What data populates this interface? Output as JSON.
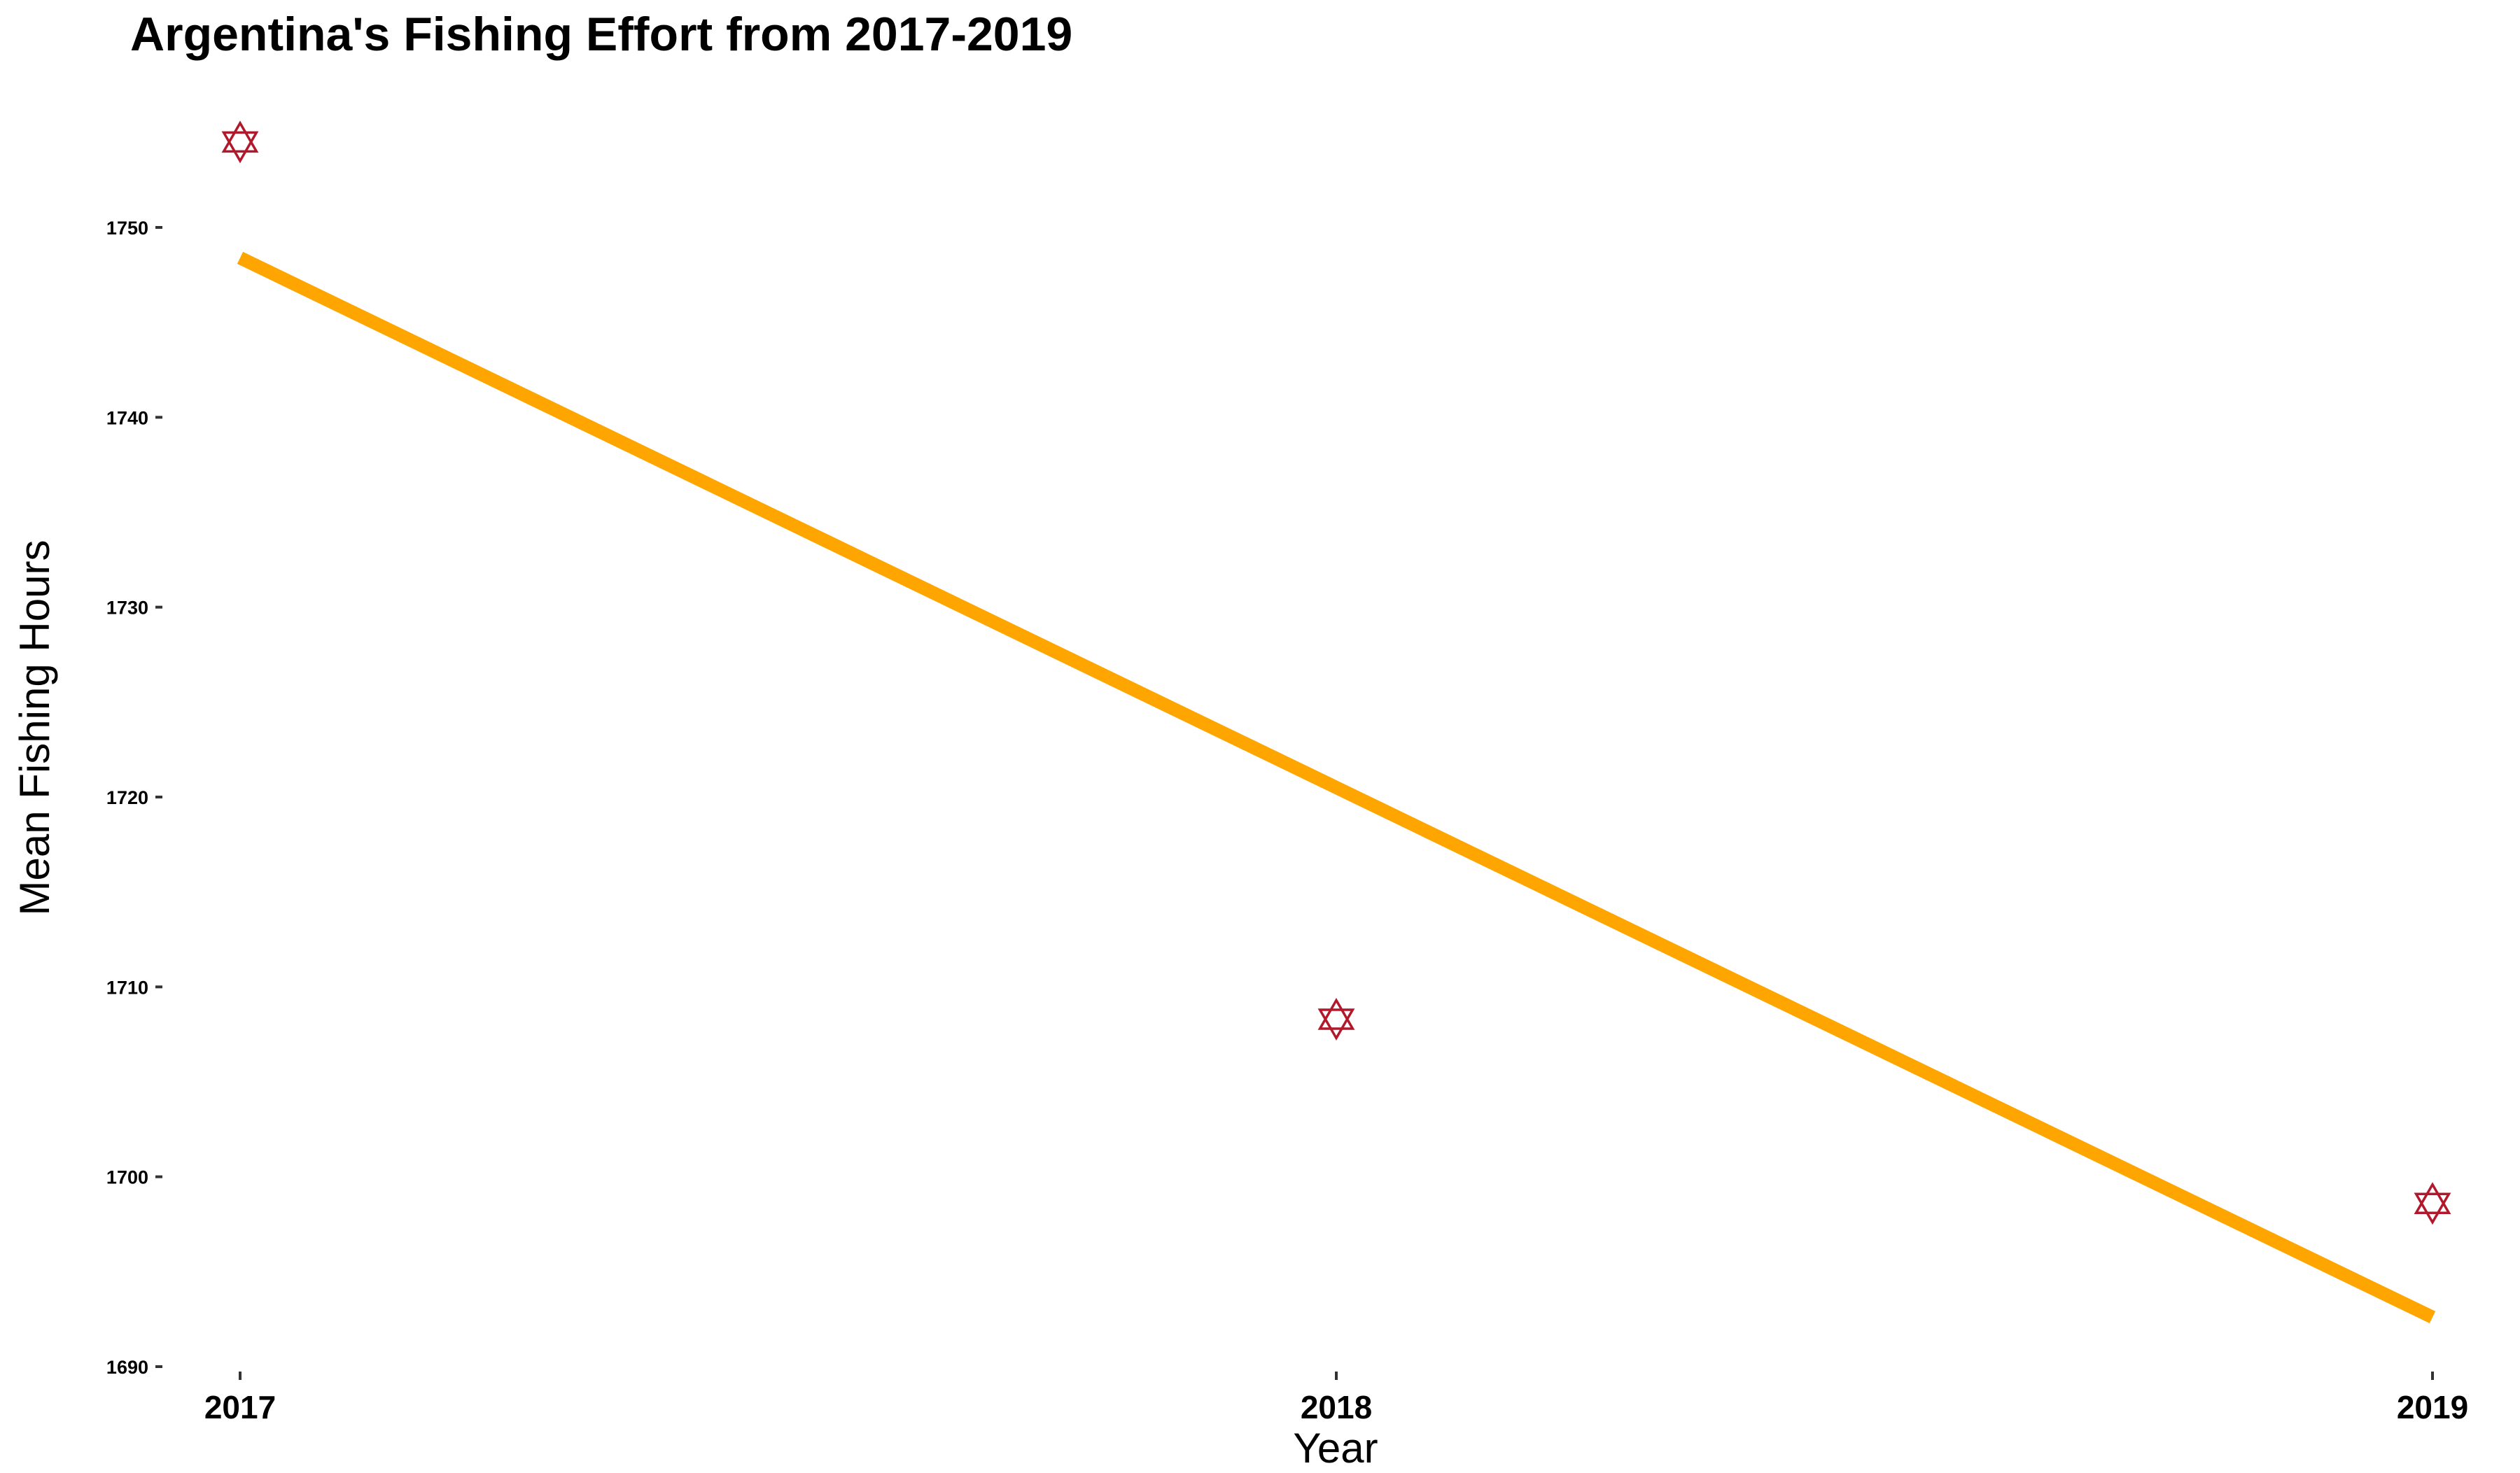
{
  "chart_data": {
    "type": "scatter",
    "title": "Argentina's Fishing Effort from 2017-2019",
    "xlabel": "Year",
    "ylabel": "Mean Fishing Hours",
    "x": [
      2017,
      2018,
      2019
    ],
    "x_tick_labels": [
      "2017",
      "2018",
      "2019"
    ],
    "y_ticks": [
      1690,
      1700,
      1710,
      1720,
      1730,
      1740,
      1750
    ],
    "y_tick_labels": [
      "1690",
      "1700",
      "1710",
      "1720",
      "1730",
      "1740",
      "1750"
    ],
    "ylim": [
      1690,
      1756
    ],
    "series": [
      {
        "kind": "points",
        "marker": "star-of-david",
        "color": "#b2182b",
        "values": [
          1754.5,
          1708.3,
          1698.6
        ]
      },
      {
        "kind": "trend-line",
        "color": "#ffa500",
        "values": [
          1748.4,
          1720.5,
          1692.6
        ]
      }
    ],
    "grid": false,
    "legend": "none"
  }
}
